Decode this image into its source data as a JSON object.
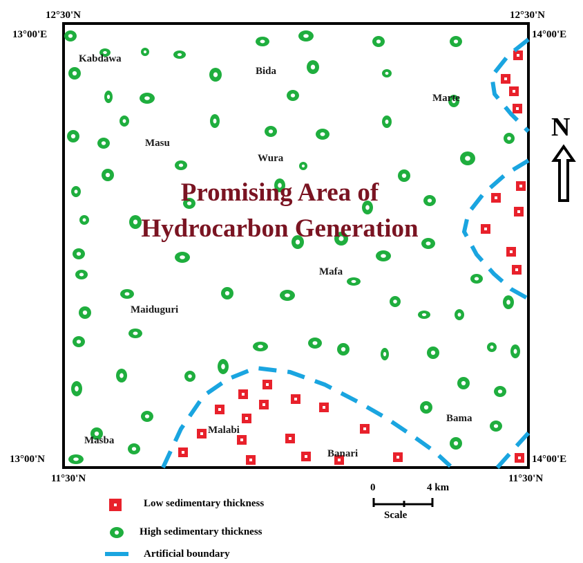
{
  "map": {
    "corners": {
      "top_left_lat": "12°30'N",
      "top_right_lat": "12°30'N",
      "top_left_lon": "13°00'E",
      "top_right_lon": "14°00'E",
      "bottom_left_lon": "13°00'N",
      "bottom_right_lon": "14°00'E",
      "bottom_left_lat": "11°30'N",
      "bottom_right_lat": "11°30'N"
    },
    "places": {
      "kabdawa": "Kabdawa",
      "bida": "Bida",
      "marte": "Marte",
      "masu": "Masu",
      "wura": "Wura",
      "mafa": "Mafa",
      "maiduguri": "Maiduguri",
      "bama": "Bama",
      "malabi": "Malabi",
      "masba": "Masba",
      "banari": "Banari"
    },
    "title_line1": "Promising Area of",
    "title_line2": "Hydrocarbon Generation",
    "north_label": "N",
    "scale": {
      "start": "0",
      "end": "4 km",
      "label": "Scale"
    },
    "legend": {
      "low": "Low sedimentary thickness",
      "high": "High sedimentary thickness",
      "boundary": "Artificial boundary"
    },
    "colors": {
      "high_marker": "#1fae3e",
      "low_marker": "#e8212b",
      "boundary": "#1aa5e0",
      "title": "#7a1422"
    }
  }
}
